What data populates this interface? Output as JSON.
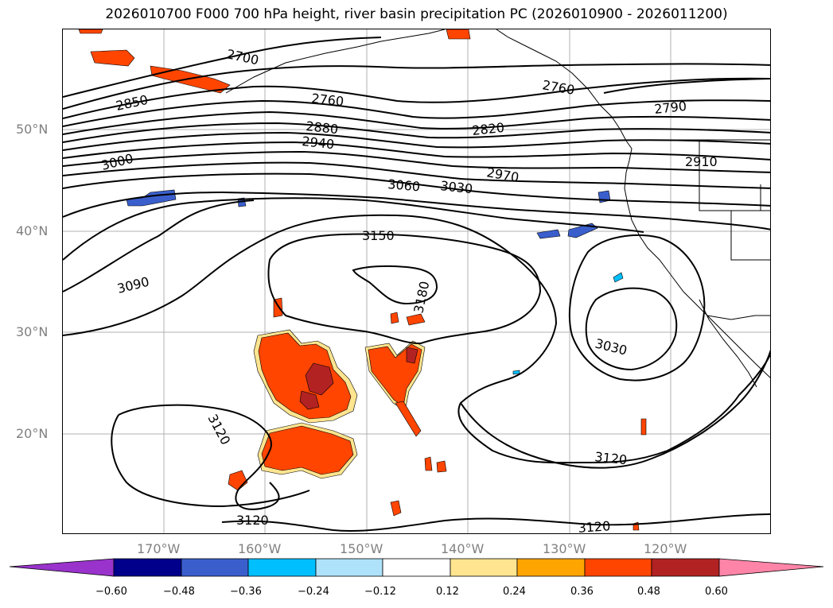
{
  "title": "2026010700 F000 700 hPa height, river basin precipitation PC (2026010900 - 2026011200)",
  "map": {
    "latitude_labels": [
      "50°N",
      "40°N",
      "30°N",
      "20°N"
    ],
    "longitude_labels": [
      "170°W",
      "160°W",
      "150°W",
      "140°W",
      "130°W",
      "120°W"
    ],
    "contour_labels": [
      "2700",
      "2850",
      "2760",
      "2880",
      "2940",
      "3000",
      "3060",
      "3030",
      "2970",
      "2820",
      "2790",
      "2910",
      "3150",
      "3180",
      "3090",
      "3030",
      "3120",
      "3120",
      "3120",
      "3120",
      "2760"
    ],
    "gridlines": true
  },
  "colorbar": {
    "ticks": [
      "−0.60",
      "−0.48",
      "−0.36",
      "−0.24",
      "−0.12",
      "0.12",
      "0.24",
      "0.36",
      "0.48",
      "0.60"
    ],
    "colors": [
      "#9933cc",
      "#00008b",
      "#3a5fcd",
      "#00bfff",
      "#aee2fa",
      "#ffffff",
      "#ffe58f",
      "#ffa500",
      "#ff4500",
      "#b22222",
      "#ff85a8",
      "#ff85a8"
    ],
    "extend": "both"
  }
}
